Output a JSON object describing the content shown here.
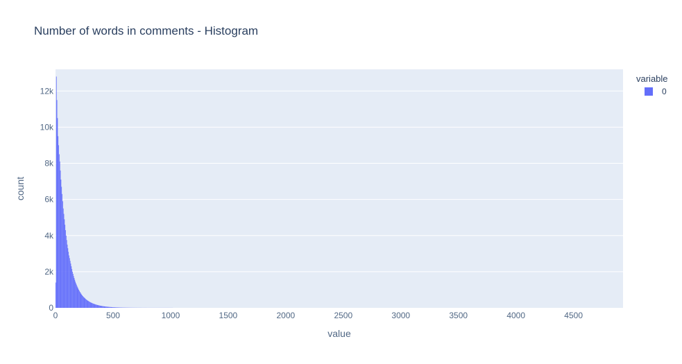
{
  "chart_data": {
    "type": "bar",
    "title": "Number of words in comments - Histogram",
    "xlabel": "value",
    "ylabel": "count",
    "xlim": [
      0,
      4930
    ],
    "ylim": [
      0,
      13200
    ],
    "x_ticks": [
      0,
      500,
      1000,
      1500,
      2000,
      2500,
      3000,
      3500,
      4000,
      4500
    ],
    "x_tick_labels": [
      "0",
      "500",
      "1000",
      "1500",
      "2000",
      "2500",
      "3000",
      "3500",
      "4000",
      "4500"
    ],
    "y_ticks": [
      0,
      2000,
      4000,
      6000,
      8000,
      10000,
      12000
    ],
    "y_tick_labels": [
      "0",
      "2k",
      "4k",
      "6k",
      "8k",
      "10k",
      "12k"
    ],
    "bin_width": 5,
    "bin_start": 0,
    "series": [
      {
        "name": "0",
        "color": "#636efa",
        "values": [
          1400,
          12800,
          11500,
          10500,
          9500,
          9000,
          8500,
          8100,
          7600,
          7100,
          6700,
          6300,
          5900,
          5500,
          5200,
          4900,
          4600,
          4300,
          4000,
          3750,
          3500,
          3300,
          3100,
          2900,
          2750,
          2600,
          2450,
          2300,
          2150,
          2000,
          1880,
          1760,
          1650,
          1550,
          1450,
          1360,
          1280,
          1200,
          1130,
          1060,
          1000,
          940,
          880,
          830,
          780,
          730,
          690,
          650,
          610,
          580,
          550,
          520,
          490,
          460,
          435,
          410,
          390,
          370,
          350,
          330,
          312,
          295,
          280,
          265,
          250,
          237,
          224,
          212,
          200,
          190,
          180,
          170,
          161,
          152,
          144,
          136,
          129,
          122,
          115,
          109,
          103,
          97,
          92,
          87,
          82,
          78,
          74,
          70,
          66,
          62,
          59,
          56,
          53,
          50,
          47,
          45,
          43,
          41,
          39,
          37,
          35,
          33,
          31,
          30,
          28,
          27,
          26,
          24,
          23,
          22,
          21,
          20,
          19,
          18,
          17,
          16,
          15,
          15,
          14,
          13,
          13,
          12,
          12,
          11,
          11,
          10,
          10,
          9,
          9,
          9,
          8,
          8,
          8,
          7,
          7,
          7,
          7,
          6,
          6,
          6,
          6,
          6,
          5,
          5,
          5,
          5,
          5,
          5,
          5,
          4,
          4,
          4,
          4,
          4,
          4,
          4,
          4,
          4,
          4,
          3,
          3,
          3,
          3,
          3,
          3,
          3,
          3,
          3,
          3,
          3,
          3,
          3,
          3,
          3,
          3,
          3,
          3,
          3,
          3,
          3,
          3,
          3,
          3,
          3,
          3,
          3,
          3,
          3,
          3,
          3,
          3,
          3,
          3,
          3,
          3,
          3,
          3,
          3,
          3,
          3,
          3,
          3,
          3,
          3
        ]
      }
    ],
    "legend": {
      "title": "variable",
      "entries": [
        "0"
      ],
      "placement": "top-right"
    },
    "grid": true
  }
}
